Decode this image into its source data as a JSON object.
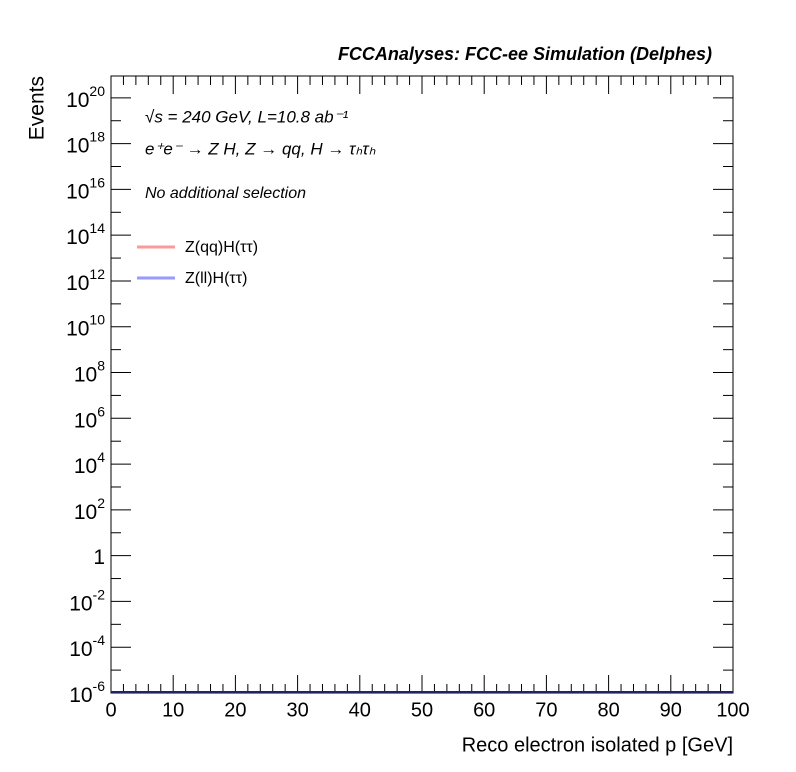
{
  "chart_data": {
    "type": "line",
    "title": "FCCAnalyses: FCC-ee Simulation (Delphes)",
    "annotations": [
      "√s = 240 GeV, L=10.8 ab⁻¹",
      "e⁺e⁻ → Z H, Z → qq, H → τₕτₕ",
      "No additional selection"
    ],
    "x_label": "Reco electron isolated p [GeV]",
    "y_label": "Events",
    "xlim": [
      0,
      100
    ],
    "xticks": [
      0,
      10,
      20,
      30,
      40,
      50,
      60,
      70,
      80,
      90,
      100
    ],
    "ylim": [
      1e-06,
      9e+20
    ],
    "log_y": true,
    "yticks": [
      {
        "value": 1e-06,
        "label": "10^-6"
      },
      {
        "value": 0.0001,
        "label": "10^-4"
      },
      {
        "value": 0.01,
        "label": "10^-2"
      },
      1,
      {
        "value": 100,
        "label": "10^2"
      },
      {
        "value": 10000.0,
        "label": "10^4"
      },
      {
        "value": 1000000.0,
        "label": "10^6"
      },
      {
        "value": 100000000.0,
        "label": "10^8"
      },
      {
        "value": 10000000000.0,
        "label": "10^10"
      },
      {
        "value": 1000000000000.0,
        "label": "10^12"
      },
      {
        "value": 100000000000000.0,
        "label": "10^14"
      },
      {
        "value": 1e+16,
        "label": "10^16"
      },
      {
        "value": 1e+18,
        "label": "10^18"
      },
      {
        "value": 1e+20,
        "label": "10^20"
      }
    ],
    "legend": "upper left",
    "series": [
      {
        "name": "Z(qq)H(ττ)",
        "color": "#ff9999"
      },
      {
        "name": "Z(ll)H(ττ)",
        "color": "#9999ff"
      }
    ]
  }
}
